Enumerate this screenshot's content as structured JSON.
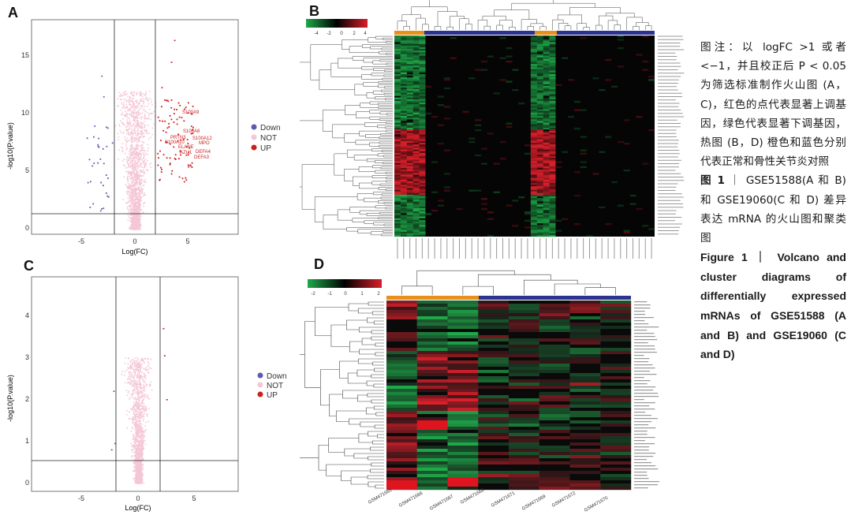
{
  "panels": {
    "A": {
      "letter": "A",
      "ylabel": "-log10(P.value)",
      "xlabel": "Log(FC)",
      "x_ticks": [
        "-5",
        "0",
        "5"
      ],
      "y_ticks": [
        "0",
        "5",
        "10",
        "15"
      ],
      "legend": [
        {
          "label": "Down",
          "color": "#5b5bb0"
        },
        {
          "label": "NOT",
          "color": "#f5c7d6"
        },
        {
          "label": "UP",
          "color": "#cc1f1f"
        }
      ],
      "genes": [
        "S100A9",
        "S100A8",
        "PRTN3",
        "S100A12",
        "MPO",
        "S100A10",
        "ELANE",
        "AZU1",
        "DEFA4",
        "DEFA3"
      ]
    },
    "B": {
      "letter": "B",
      "scale_ticks": [
        "-4",
        "-2",
        "0",
        "2",
        "4"
      ]
    },
    "C": {
      "letter": "C",
      "ylabel": "-log10(P.value)",
      "xlabel": "Log(FC)",
      "x_ticks": [
        "-5",
        "0",
        "5"
      ],
      "y_ticks": [
        "0",
        "1",
        "2",
        "3",
        "4"
      ],
      "legend": [
        {
          "label": "Down",
          "color": "#5b5bb0"
        },
        {
          "label": "NOT",
          "color": "#f5c7d6"
        },
        {
          "label": "UP",
          "color": "#cc1f1f"
        }
      ]
    },
    "D": {
      "letter": "D",
      "scale_ticks": [
        "-2",
        "-1",
        "0",
        "1",
        "2"
      ],
      "samples": [
        "GSM471665",
        "GSM471666",
        "GSM471667",
        "GSM471668",
        "GSM471671",
        "GSM471669",
        "GSM471672",
        "GSM471670"
      ]
    }
  },
  "caption": {
    "zh_line": "图注：以 logFC >1 或者 <−1，并且校正后 P < 0.05 为筛选标准制作火山图 (A，C)，红色的点代表显著上调基因，绿色代表显著下调基因，热图 (B，D) 橙色和蓝色分别代表正常和骨性关节炎对照",
    "zh_title_label": "图 1",
    "zh_title": "GSE51588(A 和 B) 和 GSE19060(C 和 D) 差异表达 mRNA 的火山图和聚类图",
    "en_label": "Figure 1",
    "en_title": "Volcano and cluster diagrams of differentially expressed mRNAs of GSE51588 (A and B) and GSE19060 (C and D)"
  },
  "colors": {
    "up": "#cc1f1f",
    "down": "#5b5bb0",
    "not": "#f5c7d6",
    "normal": "#e8901a",
    "oa": "#2b3390",
    "heat_green": "#1fa84a",
    "heat_red": "#d81f2a"
  }
}
